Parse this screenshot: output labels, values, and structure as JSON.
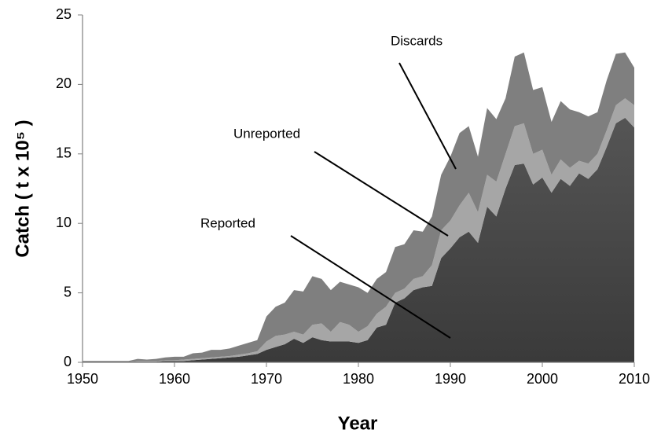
{
  "chart_data": {
    "type": "stacked_area",
    "xlabel": "Year",
    "ylabel": "Catch ( t x 10⁵ )",
    "xlim": [
      1950,
      2010
    ],
    "ylim": [
      0,
      25
    ],
    "xticks": [
      1950,
      1960,
      1970,
      1980,
      1990,
      2000,
      2010
    ],
    "yticks": [
      0,
      5,
      10,
      15,
      20,
      25
    ],
    "grid": false,
    "x": [
      1950,
      1951,
      1952,
      1953,
      1954,
      1955,
      1956,
      1957,
      1958,
      1959,
      1960,
      1961,
      1962,
      1963,
      1964,
      1965,
      1966,
      1967,
      1968,
      1969,
      1970,
      1971,
      1972,
      1973,
      1974,
      1975,
      1976,
      1977,
      1978,
      1979,
      1980,
      1981,
      1982,
      1983,
      1984,
      1985,
      1986,
      1987,
      1988,
      1989,
      1990,
      1991,
      1992,
      1993,
      1994,
      1995,
      1996,
      1997,
      1998,
      1999,
      2000,
      2001,
      2002,
      2003,
      2004,
      2005,
      2006,
      2007,
      2008,
      2009,
      2010
    ],
    "series": [
      {
        "name": "Reported",
        "color": "#4a4a4a",
        "values": [
          0.05,
          0.05,
          0.05,
          0.05,
          0.05,
          0.05,
          0.05,
          0.05,
          0.05,
          0.1,
          0.1,
          0.1,
          0.15,
          0.2,
          0.25,
          0.3,
          0.35,
          0.4,
          0.5,
          0.6,
          0.9,
          1.1,
          1.3,
          1.7,
          1.4,
          1.8,
          1.6,
          1.5,
          1.5,
          1.5,
          1.4,
          1.6,
          2.5,
          2.7,
          4.3,
          4.6,
          5.2,
          5.4,
          5.5,
          7.5,
          8.2,
          9.0,
          9.4,
          8.6,
          11.2,
          10.5,
          12.5,
          14.2,
          14.3,
          12.8,
          13.3,
          12.2,
          13.2,
          12.7,
          13.6,
          13.2,
          13.9,
          15.5,
          17.2,
          17.6,
          16.9
        ]
      },
      {
        "name": "Unreported",
        "color": "#a6a6a6",
        "values": [
          0,
          0,
          0,
          0,
          0,
          0,
          0.05,
          0.05,
          0.05,
          0.05,
          0.05,
          0.1,
          0.1,
          0.1,
          0.1,
          0.1,
          0.1,
          0.15,
          0.15,
          0.2,
          0.6,
          0.8,
          0.7,
          0.5,
          0.6,
          0.9,
          1.2,
          0.7,
          1.4,
          1.2,
          0.8,
          1.0,
          1.0,
          1.3,
          0.7,
          0.7,
          0.8,
          0.8,
          1.5,
          2.0,
          2.0,
          2.3,
          2.8,
          2.2,
          2.3,
          2.5,
          2.5,
          2.8,
          2.9,
          2.2,
          2.0,
          1.3,
          1.4,
          1.3,
          0.9,
          1.1,
          1.1,
          1.2,
          1.3,
          1.4,
          1.6
        ]
      },
      {
        "name": "Discards",
        "color": "#7f7f7f",
        "values": [
          0.05,
          0.05,
          0.05,
          0.05,
          0.05,
          0.05,
          0.15,
          0.1,
          0.15,
          0.2,
          0.25,
          0.2,
          0.4,
          0.4,
          0.55,
          0.5,
          0.55,
          0.65,
          0.75,
          0.8,
          1.8,
          2.1,
          2.3,
          3.0,
          3.1,
          3.5,
          3.2,
          3.0,
          2.9,
          2.9,
          3.2,
          2.4,
          2.5,
          2.5,
          3.3,
          3.2,
          3.5,
          3.2,
          3.5,
          4.0,
          4.6,
          5.2,
          4.8,
          4.0,
          4.8,
          4.5,
          4.0,
          5.0,
          5.1,
          4.6,
          4.5,
          3.8,
          4.2,
          4.2,
          3.5,
          3.4,
          3.0,
          3.6,
          3.7,
          3.3,
          2.7
        ]
      }
    ]
  }
}
